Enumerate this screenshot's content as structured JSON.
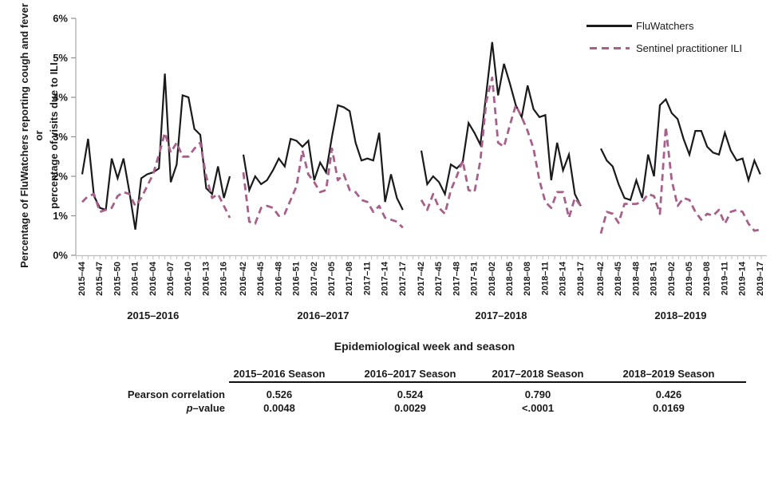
{
  "y_axis": {
    "label_line1": "Percentage of FluWatchers reporting cough and fever or",
    "label_line2": "percentage of visits due to ILI"
  },
  "x_axis": {
    "title": "Epidemiological week and season"
  },
  "chart_data": {
    "type": "line",
    "ylim": [
      0,
      6
    ],
    "grid": false,
    "legend_position": "top-right",
    "y_tick_labels": [
      "0%",
      "1%",
      "2%",
      "3%",
      "4%",
      "5%",
      "6%"
    ],
    "series": [
      {
        "name": "FluWatchers",
        "color": "#1a1a1a",
        "style": "solid"
      },
      {
        "name": "Sentinel practitioner ILI",
        "color": "#a7608b",
        "style": "dashed"
      }
    ],
    "seasons": [
      {
        "label": "2015–2016",
        "tick_labels": [
          "2015–44",
          "2015–47",
          "2015–50",
          "2016–01",
          "2016–04",
          "2016–07",
          "2016–10",
          "2016–13",
          "2016–16"
        ],
        "fluwatchers": [
          2.05,
          2.95,
          1.5,
          1.2,
          1.15,
          2.45,
          1.95,
          2.45,
          1.6,
          0.65,
          1.95,
          2.05,
          2.1,
          2.2,
          4.6,
          1.85,
          2.3,
          4.05,
          4.0,
          3.2,
          3.05,
          1.7,
          1.55,
          2.25,
          1.45,
          2.0
        ],
        "sentinel": [
          1.35,
          1.5,
          1.55,
          1.1,
          1.15,
          1.2,
          1.5,
          1.6,
          1.55,
          1.25,
          1.45,
          1.75,
          2.05,
          2.55,
          3.1,
          2.6,
          2.85,
          2.5,
          2.5,
          2.7,
          2.85,
          2.0,
          1.45,
          1.55,
          1.25,
          0.95
        ]
      },
      {
        "label": "2016–2017",
        "tick_labels": [
          "2016–42",
          "2016–45",
          "2016–48",
          "2016–51",
          "2017–02",
          "2017–05",
          "2017–08",
          "2017–11",
          "2017–14",
          "2017–17"
        ],
        "fluwatchers": [
          2.55,
          1.65,
          2.0,
          1.8,
          1.9,
          2.15,
          2.45,
          2.25,
          2.95,
          2.9,
          2.75,
          2.9,
          1.9,
          2.35,
          2.1,
          3.0,
          3.8,
          3.75,
          3.65,
          2.85,
          2.4,
          2.45,
          2.4,
          3.1,
          1.35,
          2.05,
          1.45,
          1.15
        ],
        "sentinel": [
          2.1,
          0.85,
          0.8,
          1.2,
          1.25,
          1.2,
          1.0,
          1.05,
          1.4,
          1.75,
          2.65,
          2.05,
          1.85,
          1.6,
          1.65,
          2.7,
          1.9,
          2.05,
          1.65,
          1.6,
          1.4,
          1.35,
          1.1,
          1.25,
          0.95,
          0.9,
          0.85,
          0.7
        ]
      },
      {
        "label": "2017–2018",
        "tick_labels": [
          "2017–42",
          "2017–45",
          "2017–48",
          "2017–51",
          "2018–02",
          "2018–05",
          "2018–08",
          "2018–11",
          "2018–14",
          "2018–17"
        ],
        "fluwatchers": [
          2.65,
          1.8,
          2.0,
          1.85,
          1.55,
          2.3,
          2.2,
          2.35,
          3.35,
          3.1,
          2.8,
          4.1,
          5.4,
          4.05,
          4.85,
          4.35,
          3.8,
          3.5,
          4.3,
          3.7,
          3.5,
          3.55,
          1.9,
          2.85,
          2.15,
          2.55,
          1.55,
          1.25
        ],
        "sentinel": [
          1.4,
          1.15,
          1.55,
          1.2,
          1.05,
          1.65,
          2.0,
          2.4,
          1.65,
          1.6,
          2.4,
          3.9,
          4.5,
          2.85,
          2.75,
          3.3,
          3.8,
          3.5,
          3.15,
          2.7,
          1.9,
          1.35,
          1.2,
          1.6,
          1.6,
          0.95,
          1.45,
          1.25
        ]
      },
      {
        "label": "2018–2019",
        "tick_labels": [
          "2018–42",
          "2018–45",
          "2018–48",
          "2018–51",
          "2019–02",
          "2019–05",
          "2019–08",
          "2019–11",
          "2019–14",
          "2019–17"
        ],
        "fluwatchers": [
          2.7,
          2.4,
          2.25,
          1.8,
          1.45,
          1.4,
          1.9,
          1.45,
          2.55,
          2.0,
          3.8,
          3.95,
          3.6,
          3.45,
          2.95,
          2.55,
          3.15,
          3.15,
          2.75,
          2.6,
          2.55,
          3.1,
          2.65,
          2.4,
          2.45,
          1.9,
          2.4,
          2.05
        ],
        "sentinel": [
          0.55,
          1.1,
          1.05,
          0.82,
          1.3,
          1.3,
          1.3,
          1.35,
          1.55,
          1.5,
          1.05,
          3.25,
          1.9,
          1.25,
          1.45,
          1.4,
          1.1,
          0.9,
          1.05,
          1.0,
          1.15,
          0.8,
          1.1,
          1.15,
          1.1,
          0.8,
          0.62,
          0.65
        ]
      }
    ]
  },
  "table": {
    "row_labels": {
      "pearson": "Pearson correlation",
      "p_em": "p",
      "p_rest": "–value"
    },
    "columns": [
      {
        "header": "2015–2016 Season",
        "pearson": "0.526",
        "p_value": "0.0048"
      },
      {
        "header": "2016–2017 Season",
        "pearson": "0.524",
        "p_value": "0.0029"
      },
      {
        "header": "2017–2018 Season",
        "pearson": "0.790",
        "p_value": "<.0001"
      },
      {
        "header": "2018–2019 Season",
        "pearson": "0.426",
        "p_value": "0.0169"
      }
    ]
  }
}
